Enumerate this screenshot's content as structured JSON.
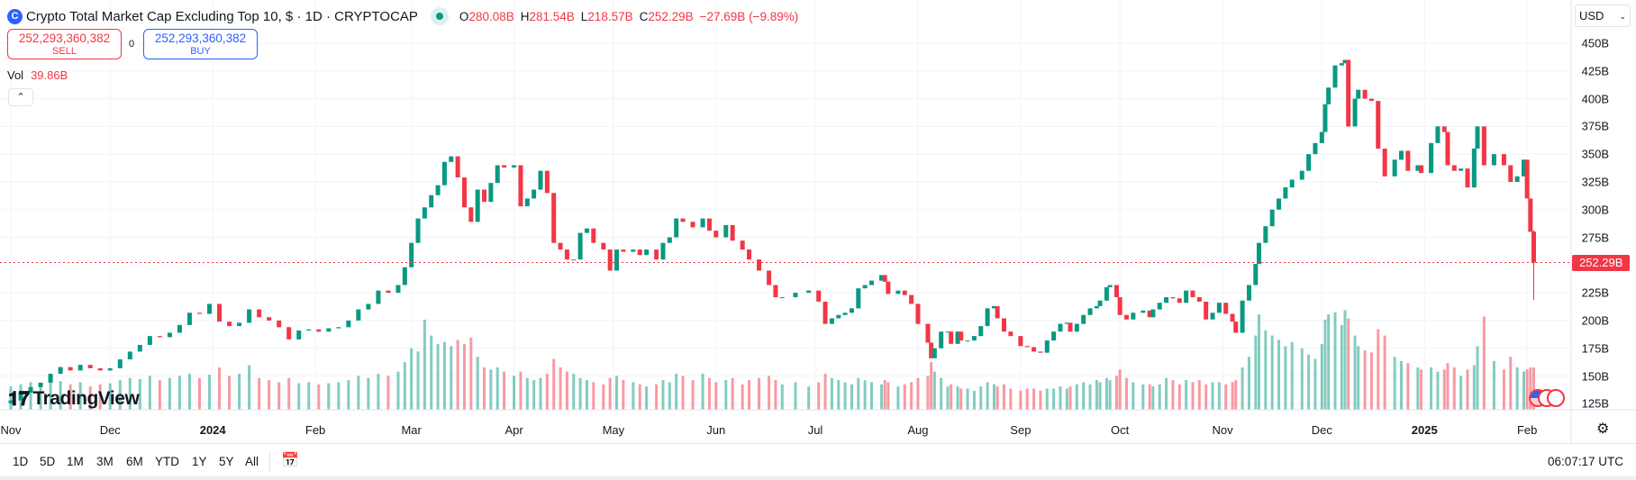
{
  "header": {
    "symbol_icon": "C",
    "title": "Crypto Total Market Cap Excluding Top 10, $ · 1D · CRYPTOCAP",
    "status_color": "#089981",
    "ohlc": [
      {
        "k": "O",
        "v": "280.08B"
      },
      {
        "k": "H",
        "v": "281.54B"
      },
      {
        "k": "L",
        "v": "218.57B"
      },
      {
        "k": "C",
        "v": "252.29B"
      },
      {
        "k": "",
        "v": "−27.69B (−9.89%)"
      }
    ]
  },
  "trade": {
    "sell_price": "252,293,360,382",
    "sell_label": "SELL",
    "spread": "0",
    "buy_price": "252,293,360,382",
    "buy_label": "BUY"
  },
  "volume": {
    "label": "Vol",
    "value": "39.86B"
  },
  "collapse_icon": "chevron-up-icon",
  "collapse_glyph": "⌃",
  "currency": "USD",
  "colors": {
    "up": "#089981",
    "down": "#f23645",
    "grid": "#f0f3fa"
  },
  "price_axis": {
    "ticks": [
      "450B",
      "425B",
      "400B",
      "375B",
      "350B",
      "325B",
      "300B",
      "275B",
      "225B",
      "200B",
      "175B",
      "150B",
      "125B"
    ],
    "current": "252.29B"
  },
  "time_axis": [
    {
      "t": "Nov",
      "d": "2023-11-01"
    },
    {
      "t": "Dec",
      "d": "2023-12-01"
    },
    {
      "t": "2024",
      "d": "2024-01-01",
      "bold": true
    },
    {
      "t": "Feb",
      "d": "2024-02-01"
    },
    {
      "t": "Mar",
      "d": "2024-03-01"
    },
    {
      "t": "Apr",
      "d": "2024-04-01"
    },
    {
      "t": "May",
      "d": "2024-05-01"
    },
    {
      "t": "Jun",
      "d": "2024-06-01"
    },
    {
      "t": "Jul",
      "d": "2024-07-01"
    },
    {
      "t": "Aug",
      "d": "2024-08-01"
    },
    {
      "t": "Sep",
      "d": "2024-09-01"
    },
    {
      "t": "Oct",
      "d": "2024-10-01"
    },
    {
      "t": "Nov",
      "d": "2024-11-01"
    },
    {
      "t": "Dec",
      "d": "2024-12-01"
    },
    {
      "t": "2025",
      "d": "2025-01-01",
      "bold": true
    },
    {
      "t": "Feb",
      "d": "2025-02-01"
    }
  ],
  "ranges": [
    "1D",
    "5D",
    "1M",
    "3M",
    "6M",
    "YTD",
    "1Y",
    "5Y",
    "All"
  ],
  "clock": "06:07:17 UTC",
  "logo": "TradingView",
  "chart_data": {
    "type": "candlestick",
    "unit": "B USD",
    "ylim": [
      125,
      450
    ],
    "grid": true,
    "last_bar": {
      "o": 280.08,
      "h": 281.54,
      "l": 218.57,
      "c": 252.29,
      "vol": 39.86
    },
    "bars": [
      [
        "2023-11-01",
        128,
        22
      ],
      [
        "2023-11-04",
        135,
        24
      ],
      [
        "2023-11-07",
        140,
        26
      ],
      [
        "2023-11-10",
        144,
        25
      ],
      [
        "2023-11-13",
        152,
        28
      ],
      [
        "2023-11-16",
        158,
        27
      ],
      [
        "2023-11-19",
        155,
        24
      ],
      [
        "2023-11-22",
        160,
        26
      ],
      [
        "2023-11-25",
        157,
        22
      ],
      [
        "2023-11-28",
        155,
        24
      ],
      [
        "2023-12-01",
        157,
        25
      ],
      [
        "2023-12-04",
        165,
        28
      ],
      [
        "2023-12-07",
        172,
        30
      ],
      [
        "2023-12-10",
        178,
        29
      ],
      [
        "2023-12-13",
        186,
        32
      ],
      [
        "2023-12-16",
        185,
        28
      ],
      [
        "2023-12-19",
        189,
        30
      ],
      [
        "2023-12-22",
        196,
        32
      ],
      [
        "2023-12-25",
        207,
        34
      ],
      [
        "2023-12-28",
        206,
        30
      ],
      [
        "2023-12-31",
        215,
        33
      ],
      [
        "2024-01-03",
        199,
        40
      ],
      [
        "2024-01-06",
        195,
        32
      ],
      [
        "2024-01-09",
        198,
        34
      ],
      [
        "2024-01-12",
        210,
        42
      ],
      [
        "2024-01-15",
        203,
        30
      ],
      [
        "2024-01-18",
        200,
        28
      ],
      [
        "2024-01-21",
        194,
        26
      ],
      [
        "2024-01-24",
        183,
        30
      ],
      [
        "2024-01-27",
        191,
        25
      ],
      [
        "2024-01-30",
        192,
        26
      ],
      [
        "2024-02-02",
        190,
        24
      ],
      [
        "2024-02-05",
        193,
        25
      ],
      [
        "2024-02-08",
        194,
        26
      ],
      [
        "2024-02-11",
        200,
        28
      ],
      [
        "2024-02-14",
        210,
        32
      ],
      [
        "2024-02-17",
        215,
        30
      ],
      [
        "2024-02-20",
        227,
        34
      ],
      [
        "2024-02-23",
        225,
        32
      ],
      [
        "2024-02-26",
        232,
        36
      ],
      [
        "2024-02-28",
        248,
        45
      ],
      [
        "2024-03-01",
        270,
        58
      ],
      [
        "2024-03-03",
        292,
        55
      ],
      [
        "2024-03-05",
        302,
        85
      ],
      [
        "2024-03-07",
        313,
        70
      ],
      [
        "2024-03-09",
        322,
        62
      ],
      [
        "2024-03-11",
        343,
        64
      ],
      [
        "2024-03-13",
        348,
        60
      ],
      [
        "2024-03-15",
        329,
        66
      ],
      [
        "2024-03-17",
        302,
        62
      ],
      [
        "2024-03-19",
        289,
        68
      ],
      [
        "2024-03-21",
        318,
        50
      ],
      [
        "2024-03-23",
        307,
        40
      ],
      [
        "2024-03-25",
        324,
        38
      ],
      [
        "2024-03-27",
        340,
        40
      ],
      [
        "2024-03-29",
        338,
        36
      ],
      [
        "2024-04-01",
        340,
        32
      ],
      [
        "2024-04-03",
        303,
        36
      ],
      [
        "2024-04-05",
        310,
        30
      ],
      [
        "2024-04-07",
        318,
        28
      ],
      [
        "2024-04-09",
        335,
        30
      ],
      [
        "2024-04-11",
        315,
        34
      ],
      [
        "2024-04-13",
        270,
        48
      ],
      [
        "2024-04-15",
        264,
        40
      ],
      [
        "2024-04-17",
        255,
        36
      ],
      [
        "2024-04-19",
        255,
        34
      ],
      [
        "2024-04-21",
        279,
        30
      ],
      [
        "2024-04-23",
        283,
        28
      ],
      [
        "2024-04-25",
        270,
        26
      ],
      [
        "2024-04-28",
        264,
        24
      ],
      [
        "2024-04-30",
        245,
        30
      ],
      [
        "2024-05-02",
        264,
        32
      ],
      [
        "2024-05-04",
        262,
        28
      ],
      [
        "2024-05-07",
        264,
        26
      ],
      [
        "2024-05-09",
        259,
        24
      ],
      [
        "2024-05-11",
        264,
        22
      ],
      [
        "2024-05-14",
        255,
        24
      ],
      [
        "2024-05-16",
        270,
        28
      ],
      [
        "2024-05-18",
        275,
        26
      ],
      [
        "2024-05-20",
        292,
        34
      ],
      [
        "2024-05-22",
        289,
        32
      ],
      [
        "2024-05-25",
        284,
        28
      ],
      [
        "2024-05-28",
        292,
        34
      ],
      [
        "2024-05-30",
        281,
        30
      ],
      [
        "2024-06-01",
        275,
        26
      ],
      [
        "2024-06-04",
        286,
        28
      ],
      [
        "2024-06-06",
        272,
        30
      ],
      [
        "2024-06-09",
        264,
        24
      ],
      [
        "2024-06-11",
        255,
        28
      ],
      [
        "2024-06-14",
        245,
        30
      ],
      [
        "2024-06-17",
        232,
        32
      ],
      [
        "2024-06-19",
        221,
        28
      ],
      [
        "2024-06-21",
        221,
        24
      ],
      [
        "2024-06-25",
        225,
        26
      ],
      [
        "2024-06-29",
        227,
        22
      ],
      [
        "2024-07-02",
        217,
        26
      ],
      [
        "2024-07-04",
        197,
        34
      ],
      [
        "2024-07-06",
        202,
        30
      ],
      [
        "2024-07-08",
        205,
        28
      ],
      [
        "2024-07-10",
        207,
        26
      ],
      [
        "2024-07-12",
        211,
        24
      ],
      [
        "2024-07-14",
        229,
        30
      ],
      [
        "2024-07-16",
        232,
        28
      ],
      [
        "2024-07-18",
        236,
        26
      ],
      [
        "2024-07-21",
        241,
        24
      ],
      [
        "2024-07-22",
        235,
        28
      ],
      [
        "2024-07-23",
        224,
        26
      ],
      [
        "2024-07-26",
        227,
        22
      ],
      [
        "2024-07-28",
        223,
        24
      ],
      [
        "2024-07-30",
        215,
        26
      ],
      [
        "2024-08-01",
        197,
        30
      ],
      [
        "2024-08-04",
        180,
        32
      ],
      [
        "2024-08-05",
        166,
        45
      ],
      [
        "2024-08-06",
        175,
        36
      ],
      [
        "2024-08-08",
        190,
        30
      ],
      [
        "2024-08-10",
        190,
        22
      ],
      [
        "2024-08-11",
        179,
        24
      ],
      [
        "2024-08-13",
        190,
        22
      ],
      [
        "2024-08-14",
        182,
        20
      ],
      [
        "2024-08-16",
        182,
        20
      ],
      [
        "2024-08-18",
        186,
        18
      ],
      [
        "2024-08-20",
        195,
        22
      ],
      [
        "2024-08-22",
        211,
        26
      ],
      [
        "2024-08-24",
        213,
        24
      ],
      [
        "2024-08-25",
        202,
        22
      ],
      [
        "2024-08-27",
        190,
        24
      ],
      [
        "2024-08-29",
        186,
        20
      ],
      [
        "2024-09-01",
        177,
        18
      ],
      [
        "2024-09-03",
        176,
        20
      ],
      [
        "2024-09-05",
        172,
        20
      ],
      [
        "2024-09-07",
        171,
        18
      ],
      [
        "2024-09-09",
        182,
        20
      ],
      [
        "2024-09-11",
        190,
        20
      ],
      [
        "2024-09-13",
        197,
        22
      ],
      [
        "2024-09-15",
        198,
        20
      ],
      [
        "2024-09-16",
        190,
        22
      ],
      [
        "2024-09-18",
        197,
        24
      ],
      [
        "2024-09-20",
        205,
        26
      ],
      [
        "2024-09-22",
        211,
        24
      ],
      [
        "2024-09-24",
        213,
        28
      ],
      [
        "2024-09-25",
        218,
        26
      ],
      [
        "2024-09-27",
        230,
        30
      ],
      [
        "2024-09-28",
        232,
        28
      ],
      [
        "2024-09-30",
        221,
        32
      ],
      [
        "2024-10-01",
        205,
        38
      ],
      [
        "2024-10-03",
        201,
        30
      ],
      [
        "2024-10-05",
        207,
        26
      ],
      [
        "2024-10-08",
        209,
        24
      ],
      [
        "2024-10-10",
        203,
        24
      ],
      [
        "2024-10-11",
        210,
        22
      ],
      [
        "2024-10-13",
        216,
        24
      ],
      [
        "2024-10-15",
        221,
        30
      ],
      [
        "2024-10-17",
        220,
        28
      ],
      [
        "2024-10-19",
        216,
        24
      ],
      [
        "2024-10-21",
        227,
        28
      ],
      [
        "2024-10-23",
        221,
        26
      ],
      [
        "2024-10-25",
        217,
        28
      ],
      [
        "2024-10-27",
        201,
        24
      ],
      [
        "2024-10-29",
        207,
        26
      ],
      [
        "2024-10-31",
        216,
        26
      ],
      [
        "2024-11-02",
        206,
        24
      ],
      [
        "2024-11-04",
        199,
        26
      ],
      [
        "2024-11-05",
        189,
        28
      ],
      [
        "2024-11-07",
        218,
        40
      ],
      [
        "2024-11-09",
        232,
        50
      ],
      [
        "2024-11-11",
        251,
        70
      ],
      [
        "2024-11-12",
        270,
        90
      ],
      [
        "2024-11-14",
        285,
        75
      ],
      [
        "2024-11-16",
        300,
        70
      ],
      [
        "2024-11-18",
        310,
        66
      ],
      [
        "2024-11-20",
        320,
        60
      ],
      [
        "2024-11-22",
        327,
        64
      ],
      [
        "2024-11-25",
        335,
        58
      ],
      [
        "2024-11-27",
        350,
        52
      ],
      [
        "2024-11-29",
        360,
        48
      ],
      [
        "2024-12-01",
        370,
        62
      ],
      [
        "2024-12-02",
        395,
        85
      ],
      [
        "2024-12-03",
        410,
        90
      ],
      [
        "2024-12-05",
        430,
        92
      ],
      [
        "2024-12-07",
        432,
        80
      ],
      [
        "2024-12-08",
        435,
        94
      ],
      [
        "2024-12-09",
        375,
        86
      ],
      [
        "2024-12-11",
        400,
        70
      ],
      [
        "2024-12-12",
        408,
        60
      ],
      [
        "2024-12-14",
        400,
        56
      ],
      [
        "2024-12-16",
        398,
        54
      ],
      [
        "2024-12-18",
        355,
        76
      ],
      [
        "2024-12-20",
        330,
        70
      ],
      [
        "2024-12-23",
        345,
        50
      ],
      [
        "2024-12-25",
        353,
        46
      ],
      [
        "2024-12-27",
        335,
        44
      ],
      [
        "2024-12-30",
        340,
        40
      ],
      [
        "2024-12-31",
        333,
        38
      ],
      [
        "2025-01-03",
        360,
        40
      ],
      [
        "2025-01-05",
        375,
        36
      ],
      [
        "2025-01-07",
        370,
        38
      ],
      [
        "2025-01-08",
        340,
        44
      ],
      [
        "2025-01-10",
        335,
        40
      ],
      [
        "2025-01-12",
        337,
        32
      ],
      [
        "2025-01-14",
        320,
        38
      ],
      [
        "2025-01-16",
        355,
        42
      ],
      [
        "2025-01-17",
        375,
        60
      ],
      [
        "2025-01-19",
        340,
        88
      ],
      [
        "2025-01-22",
        350,
        46
      ],
      [
        "2025-01-25",
        340,
        38
      ],
      [
        "2025-01-27",
        325,
        50
      ],
      [
        "2025-01-29",
        330,
        40
      ],
      [
        "2025-01-31",
        345,
        36
      ],
      [
        "2025-02-01",
        310,
        38
      ],
      [
        "2025-02-02",
        280,
        40
      ]
    ]
  }
}
